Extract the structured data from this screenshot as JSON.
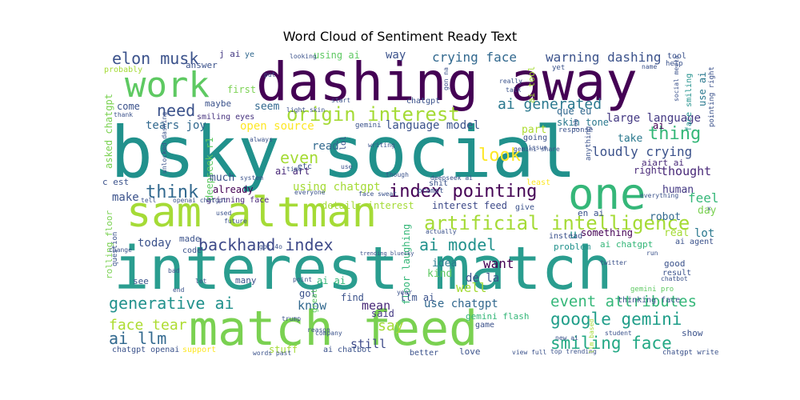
{
  "title": "Word Cloud of Sentiment Ready Text",
  "palette": {
    "dark_purple": "#440154",
    "indigo": "#3b528b",
    "teal": "#21918c",
    "green": "#5ec962",
    "lime": "#a5db36",
    "yellow": "#fde725",
    "blue": "#31688e"
  },
  "words": [
    {
      "text": "dashing away",
      "color": "#440154"
    },
    {
      "text": "bsky social",
      "color": "#21918c"
    },
    {
      "text": "interest match",
      "color": "#2a9d8f"
    },
    {
      "text": "match feed",
      "color": "#7ad151"
    },
    {
      "text": "sam altman",
      "color": "#a5db36"
    },
    {
      "text": "work",
      "color": "#5ec962"
    },
    {
      "text": "one",
      "color": "#35b779"
    },
    {
      "text": "origin interest",
      "color": "#a5db36"
    },
    {
      "text": "artificial intelligence",
      "color": "#a5db36"
    },
    {
      "text": "index pointing",
      "color": "#440154"
    },
    {
      "text": "backhand index",
      "color": "#3e4a89"
    },
    {
      "text": "elon musk",
      "color": "#3b528b"
    },
    {
      "text": "ai generated",
      "color": "#2a788e"
    },
    {
      "text": "generative ai",
      "color": "#21918c"
    },
    {
      "text": "google gemini",
      "color": "#1f9e89"
    },
    {
      "text": "smiling face",
      "color": "#22a884"
    },
    {
      "text": "event attributes",
      "color": "#35b779"
    },
    {
      "text": "ai model",
      "color": "#21918c"
    },
    {
      "text": "think",
      "color": "#31688e"
    },
    {
      "text": "thing",
      "color": "#35b779"
    },
    {
      "text": "need",
      "color": "#3b528b"
    },
    {
      "text": "even",
      "color": "#a5db36"
    },
    {
      "text": "look",
      "color": "#fde725"
    },
    {
      "text": "ai llm",
      "color": "#31688e"
    },
    {
      "text": "face tear",
      "color": "#addc30"
    },
    {
      "text": "say",
      "color": "#a5db36"
    },
    {
      "text": "crying face",
      "color": "#31688e"
    },
    {
      "text": "warning dashing",
      "color": "#3b528b"
    },
    {
      "text": "large language",
      "color": "#443983"
    },
    {
      "text": "language model",
      "color": "#3b528b"
    },
    {
      "text": "loudly crying",
      "color": "#3b528b"
    },
    {
      "text": "using chatgpt",
      "color": "#a5db36"
    },
    {
      "text": "open source",
      "color": "#fde725"
    },
    {
      "text": "tears joy",
      "color": "#31688e"
    },
    {
      "text": "skin tone",
      "color": "#2a788e"
    },
    {
      "text": "use chatgpt",
      "color": "#31688e"
    },
    {
      "text": "interest feed",
      "color": "#3e4a89"
    },
    {
      "text": "details interest",
      "color": "#a5db36"
    },
    {
      "text": "grinning face",
      "color": "#482878"
    },
    {
      "text": "smiling eyes",
      "color": "#46327e"
    },
    {
      "text": "deepseek r1",
      "color": "#5ec962"
    },
    {
      "text": "asked chatgpt",
      "color": "#7ad151"
    },
    {
      "text": "rolling floor",
      "color": "#7ad151"
    },
    {
      "text": "floor laughing",
      "color": "#35b779"
    },
    {
      "text": "ai chatgpt",
      "color": "#35b779"
    },
    {
      "text": "ai art",
      "color": "#482878"
    },
    {
      "text": "feel",
      "color": "#35b779"
    },
    {
      "text": "make",
      "color": "#3b528b"
    },
    {
      "text": "human",
      "color": "#443983"
    },
    {
      "text": "thought",
      "color": "#482878"
    },
    {
      "text": "today",
      "color": "#3b528b"
    },
    {
      "text": "want",
      "color": "#440154"
    },
    {
      "text": "well",
      "color": "#a5db36"
    },
    {
      "text": "know",
      "color": "#31688e"
    },
    {
      "text": "mean",
      "color": "#482878"
    },
    {
      "text": "still",
      "color": "#3e4a89"
    },
    {
      "text": "lot",
      "color": "#2a788e"
    },
    {
      "text": "way",
      "color": "#3b528b"
    },
    {
      "text": "u",
      "color": "#21918c"
    },
    {
      "text": "read",
      "color": "#31688e"
    },
    {
      "text": "seem",
      "color": "#31688e"
    },
    {
      "text": "much",
      "color": "#3b528b"
    },
    {
      "text": "part",
      "color": "#addc30"
    },
    {
      "text": "take",
      "color": "#2a788e"
    },
    {
      "text": "right",
      "color": "#482878"
    },
    {
      "text": "real",
      "color": "#a5db36"
    },
    {
      "text": "day",
      "color": "#7ad151"
    },
    {
      "text": "robot",
      "color": "#31688e"
    },
    {
      "text": "something",
      "color": "#440154"
    },
    {
      "text": "problem",
      "color": "#21918c"
    },
    {
      "text": "thinking face",
      "color": "#3b528b"
    },
    {
      "text": "gemini pro",
      "color": "#5ec962"
    },
    {
      "text": "gemini flash",
      "color": "#35b779"
    },
    {
      "text": "de la",
      "color": "#3b528b"
    },
    {
      "text": "idea",
      "color": "#2a788e"
    },
    {
      "text": "kind",
      "color": "#5ec962"
    },
    {
      "text": "ai ai",
      "color": "#35b779"
    },
    {
      "text": "llm ai",
      "color": "#3b528b"
    },
    {
      "text": "find",
      "color": "#3b528b"
    },
    {
      "text": "said",
      "color": "#443983"
    },
    {
      "text": "got",
      "color": "#3b528b"
    },
    {
      "text": "great",
      "color": "#5ec962"
    },
    {
      "text": "already",
      "color": "#440154"
    },
    {
      "text": "made",
      "color": "#3b528b"
    },
    {
      "text": "maybe",
      "color": "#3b528b"
    },
    {
      "text": "come",
      "color": "#3b528b"
    },
    {
      "text": "first",
      "color": "#7ad151"
    },
    {
      "text": "answer",
      "color": "#3b528b"
    },
    {
      "text": "using ai",
      "color": "#5ec962"
    },
    {
      "text": "j ai",
      "color": "#443983"
    },
    {
      "text": "ye",
      "color": "#31688e"
    },
    {
      "text": "ai tool",
      "color": "#a5db36"
    },
    {
      "text": "que eu",
      "color": "#31688e"
    },
    {
      "text": "en ai",
      "color": "#3b528b"
    },
    {
      "text": "use ai",
      "color": "#2a788e"
    },
    {
      "text": "face smiling",
      "color": "#21918c"
    },
    {
      "text": "pointing right",
      "color": "#3b528b"
    },
    {
      "text": "aiart ai",
      "color": "#482878"
    },
    {
      "text": "ai",
      "color": "#440154"
    },
    {
      "text": "chatgpt openai",
      "color": "#3b528b"
    },
    {
      "text": "support",
      "color": "#fde725"
    },
    {
      "text": "ai chatbot",
      "color": "#3b528b"
    },
    {
      "text": "stuff",
      "color": "#a5db36"
    },
    {
      "text": "better",
      "color": "#3b528b"
    },
    {
      "text": "love",
      "color": "#3b528b"
    },
    {
      "text": "show",
      "color": "#3b528b"
    },
    {
      "text": "game",
      "color": "#3b528b"
    },
    {
      "text": "instead",
      "color": "#3b528b"
    },
    {
      "text": "result",
      "color": "#3b528b"
    },
    {
      "text": "good",
      "color": "#3b528b"
    },
    {
      "text": "see",
      "color": "#3b528b"
    },
    {
      "text": "many",
      "color": "#3b528b"
    },
    {
      "text": "code",
      "color": "#3b528b"
    },
    {
      "text": "c est",
      "color": "#3b528b"
    },
    {
      "text": "probably",
      "color": "#a5db36"
    },
    {
      "text": "chatgpt write",
      "color": "#3b528b"
    },
    {
      "text": "top trending",
      "color": "#3b528b"
    },
    {
      "text": "llm based",
      "color": "#a5db36"
    },
    {
      "text": "words past",
      "color": "#3b528b"
    },
    {
      "text": "view full",
      "color": "#3b528b"
    },
    {
      "text": "chatgpt",
      "color": "#3b528b"
    },
    {
      "text": "gemini",
      "color": "#3b528b"
    },
    {
      "text": "tool",
      "color": "#3b528b"
    },
    {
      "text": "ai agent",
      "color": "#3b528b"
    },
    {
      "text": "help",
      "color": "#3b528b"
    },
    {
      "text": "name",
      "color": "#3b528b"
    },
    {
      "text": "question",
      "color": "#3b528b"
    },
    {
      "text": "future",
      "color": "#3b528b"
    },
    {
      "text": "give",
      "color": "#3b528b"
    },
    {
      "text": "least",
      "color": "#fde725"
    },
    {
      "text": "shit",
      "color": "#3b528b"
    },
    {
      "text": "etc",
      "color": "#3b528b"
    },
    {
      "text": "lol",
      "color": "#3b528b"
    },
    {
      "text": "going",
      "color": "#3b528b"
    },
    {
      "text": "response",
      "color": "#3b528b"
    },
    {
      "text": "prompt",
      "color": "#3b528b"
    },
    {
      "text": "actually",
      "color": "#3b528b"
    },
    {
      "text": "use",
      "color": "#3b528b"
    },
    {
      "text": "used",
      "color": "#3b528b"
    },
    {
      "text": "gpt 4o",
      "color": "#3b528b"
    },
    {
      "text": "start",
      "color": "#3b528b"
    },
    {
      "text": "really",
      "color": "#3b528b"
    },
    {
      "text": "talk",
      "color": "#3b528b"
    },
    {
      "text": "yet",
      "color": "#3b528b"
    },
    {
      "text": "bad",
      "color": "#3b528b"
    },
    {
      "text": "run",
      "color": "#3b528b"
    },
    {
      "text": "let",
      "color": "#3b528b"
    },
    {
      "text": "point",
      "color": "#3b528b"
    },
    {
      "text": "end",
      "color": "#3b528b"
    },
    {
      "text": "reason",
      "color": "#3b528b"
    },
    {
      "text": "twitter",
      "color": "#3b528b"
    },
    {
      "text": "chatbot",
      "color": "#3b528b"
    },
    {
      "text": "student",
      "color": "#3b528b"
    },
    {
      "text": "new ai",
      "color": "#3b528b"
    },
    {
      "text": "everything",
      "color": "#3b528b"
    },
    {
      "text": "everyone",
      "color": "#3b528b"
    },
    {
      "text": "though",
      "color": "#3b528b"
    },
    {
      "text": "anything",
      "color": "#3b528b"
    },
    {
      "text": "issue",
      "color": "#3b528b"
    },
    {
      "text": "job",
      "color": "#3b528b"
    },
    {
      "text": "trump",
      "color": "#3b528b"
    },
    {
      "text": "company",
      "color": "#3b528b"
    },
    {
      "text": "light skin",
      "color": "#3b528b"
    },
    {
      "text": "time",
      "color": "#3b528b"
    },
    {
      "text": "always",
      "color": "#3b528b"
    },
    {
      "text": "system",
      "color": "#3b528b"
    },
    {
      "text": "tell",
      "color": "#3b528b"
    },
    {
      "text": "change",
      "color": "#3b528b"
    },
    {
      "text": "looking",
      "color": "#3b528b"
    },
    {
      "text": "put",
      "color": "#3b528b"
    },
    {
      "text": "thank",
      "color": "#3b528b"
    },
    {
      "text": "writing",
      "color": "#3b528b"
    },
    {
      "text": "social media",
      "color": "#3b528b"
    },
    {
      "text": "gemini share",
      "color": "#3b528b"
    },
    {
      "text": "deepseek ai",
      "color": "#3b528b"
    },
    {
      "text": "year",
      "color": "#3b528b"
    },
    {
      "text": "x",
      "color": "#3b528b"
    },
    {
      "text": "face sweat",
      "color": "#3b528b"
    },
    {
      "text": "openai chatgpt",
      "color": "#3b528b"
    },
    {
      "text": "unlocked dashing",
      "color": "#3b528b"
    },
    {
      "text": "gon na",
      "color": "#3b528b"
    },
    {
      "text": "trending bluesky",
      "color": "#3b528b"
    }
  ]
}
